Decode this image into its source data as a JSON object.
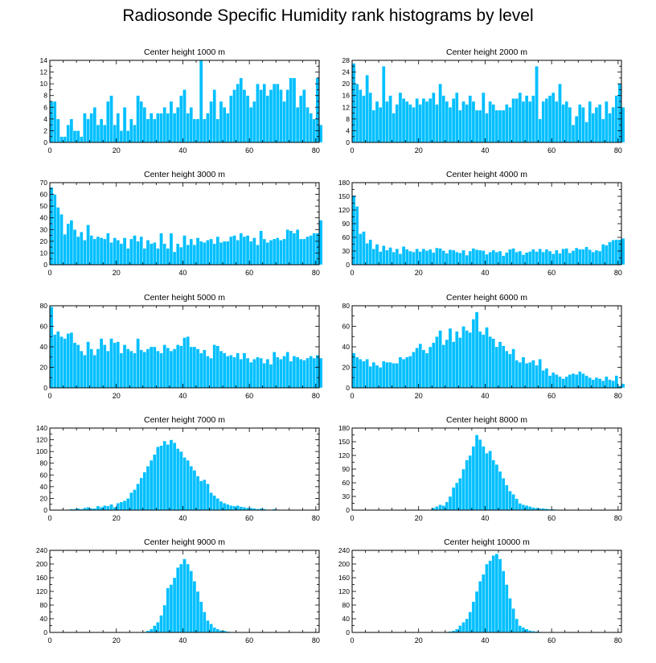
{
  "title": "Radiosonde Specific Humidity rank histograms by level",
  "colors": {
    "bar": "#00BFFF",
    "bar_edge": "#ffffff",
    "axis": "#000000"
  },
  "chart_data": [
    {
      "type": "bar",
      "title": "Center height 1000 m",
      "xlim": [
        0,
        81
      ],
      "ylim": [
        0,
        14
      ],
      "xticks": [
        0,
        20,
        40,
        60,
        80
      ],
      "yticks": [
        0,
        2,
        4,
        6,
        8,
        10,
        12,
        14
      ],
      "values": [
        7,
        7,
        4,
        1,
        1,
        3,
        4,
        2,
        2,
        1,
        5,
        4,
        5,
        6,
        3,
        4,
        3,
        7,
        8,
        3,
        5,
        2,
        6,
        2,
        4,
        3,
        8,
        7,
        6,
        4,
        5,
        4,
        5,
        5,
        6,
        5,
        7,
        5,
        6,
        8,
        9,
        5,
        6,
        4,
        4,
        14,
        4,
        5,
        7,
        9,
        4,
        7,
        6,
        5,
        8,
        9,
        10,
        11,
        9,
        8,
        6,
        7,
        10,
        9,
        10,
        8,
        9,
        10,
        10,
        9,
        7,
        9,
        11,
        11,
        6,
        8,
        9,
        6,
        5,
        4,
        11,
        3
      ]
    },
    {
      "type": "bar",
      "title": "Center height 2000 m",
      "xlim": [
        0,
        81
      ],
      "ylim": [
        0,
        28
      ],
      "xticks": [
        0,
        20,
        40,
        60,
        80
      ],
      "yticks": [
        0,
        4,
        8,
        12,
        16,
        20,
        24,
        28
      ],
      "values": [
        27,
        20,
        18,
        16,
        23,
        17,
        11,
        14,
        12,
        26,
        14,
        16,
        10,
        13,
        17,
        15,
        14,
        13,
        12,
        15,
        13,
        15,
        14,
        15,
        17,
        13,
        20,
        16,
        14,
        12,
        15,
        17,
        11,
        14,
        13,
        16,
        14,
        11,
        11,
        17,
        10,
        14,
        13,
        11,
        11,
        11,
        13,
        12,
        15,
        15,
        17,
        14,
        16,
        14,
        16,
        26,
        8,
        14,
        15,
        16,
        17,
        14,
        20,
        13,
        14,
        12,
        6,
        9,
        13,
        12,
        7,
        14,
        10,
        12,
        13,
        8,
        14,
        10,
        12,
        16,
        20,
        12
      ]
    },
    {
      "type": "bar",
      "title": "Center height 3000 m",
      "xlim": [
        0,
        81
      ],
      "ylim": [
        0,
        70
      ],
      "xticks": [
        0,
        20,
        40,
        60,
        80
      ],
      "yticks": [
        0,
        10,
        20,
        30,
        40,
        50,
        60,
        70
      ],
      "values": [
        66,
        60,
        49,
        43,
        26,
        35,
        38,
        30,
        24,
        28,
        21,
        34,
        25,
        22,
        24,
        23,
        22,
        27,
        19,
        23,
        21,
        18,
        23,
        14,
        22,
        25,
        20,
        24,
        14,
        21,
        18,
        19,
        14,
        27,
        18,
        14,
        27,
        11,
        18,
        15,
        25,
        17,
        22,
        17,
        23,
        20,
        19,
        21,
        22,
        18,
        24,
        19,
        20,
        20,
        24,
        25,
        21,
        27,
        24,
        25,
        20,
        23,
        17,
        29,
        22,
        19,
        21,
        22,
        23,
        21,
        22,
        30,
        29,
        27,
        30,
        22,
        22,
        24,
        25,
        27,
        27,
        38
      ]
    },
    {
      "type": "bar",
      "title": "Center height 4000 m",
      "xlim": [
        0,
        81
      ],
      "ylim": [
        0,
        180
      ],
      "xticks": [
        0,
        20,
        40,
        60,
        80
      ],
      "yticks": [
        0,
        30,
        60,
        90,
        120,
        150,
        180
      ],
      "values": [
        152,
        128,
        68,
        73,
        47,
        55,
        35,
        45,
        29,
        42,
        32,
        38,
        28,
        35,
        24,
        40,
        34,
        30,
        28,
        35,
        29,
        35,
        31,
        34,
        27,
        37,
        36,
        31,
        25,
        33,
        32,
        28,
        26,
        32,
        21,
        30,
        36,
        33,
        32,
        31,
        23,
        28,
        32,
        28,
        30,
        20,
        27,
        34,
        36,
        28,
        30,
        22,
        27,
        29,
        34,
        29,
        35,
        28,
        34,
        30,
        24,
        32,
        25,
        35,
        36,
        26,
        31,
        37,
        34,
        34,
        39,
        33,
        28,
        32,
        30,
        45,
        43,
        50,
        54,
        55,
        55,
        58
      ]
    },
    {
      "type": "bar",
      "title": "Center height 5000 m",
      "xlim": [
        0,
        81
      ],
      "ylim": [
        0,
        80
      ],
      "xticks": [
        0,
        20,
        40,
        60,
        80
      ],
      "yticks": [
        0,
        20,
        40,
        60,
        80
      ],
      "values": [
        79,
        52,
        55,
        50,
        48,
        53,
        54,
        44,
        42,
        36,
        32,
        45,
        38,
        32,
        38,
        48,
        42,
        36,
        48,
        44,
        45,
        34,
        42,
        38,
        36,
        34,
        48,
        37,
        35,
        38,
        40,
        40,
        36,
        34,
        42,
        39,
        36,
        38,
        42,
        41,
        49,
        50,
        40,
        40,
        38,
        34,
        37,
        31,
        29,
        42,
        41,
        36,
        34,
        31,
        32,
        30,
        34,
        28,
        34,
        29,
        25,
        28,
        30,
        29,
        24,
        28,
        23,
        35,
        30,
        28,
        31,
        35,
        26,
        31,
        30,
        28,
        27,
        29,
        31,
        29,
        32,
        29
      ]
    },
    {
      "type": "bar",
      "title": "Center height 6000 m",
      "xlim": [
        0,
        81
      ],
      "ylim": [
        0,
        80
      ],
      "xticks": [
        0,
        20,
        40,
        60,
        80
      ],
      "yticks": [
        0,
        20,
        40,
        60,
        80
      ],
      "values": [
        34,
        30,
        28,
        26,
        28,
        21,
        25,
        22,
        20,
        26,
        25,
        25,
        24,
        24,
        30,
        28,
        30,
        31,
        35,
        39,
        43,
        37,
        34,
        40,
        44,
        50,
        56,
        42,
        47,
        58,
        45,
        55,
        49,
        60,
        56,
        54,
        67,
        74,
        55,
        52,
        59,
        50,
        48,
        40,
        45,
        41,
        36,
        33,
        38,
        27,
        25,
        30,
        24,
        25,
        27,
        22,
        28,
        17,
        19,
        12,
        15,
        13,
        11,
        9,
        11,
        13,
        14,
        13,
        16,
        14,
        12,
        10,
        8,
        10,
        9,
        7,
        11,
        8,
        7,
        12,
        2,
        4
      ]
    },
    {
      "type": "bar",
      "title": "Center height 7000 m",
      "xlim": [
        0,
        81
      ],
      "ylim": [
        0,
        140
      ],
      "xticks": [
        0,
        20,
        40,
        60,
        80
      ],
      "yticks": [
        0,
        20,
        40,
        60,
        80,
        100,
        120,
        140
      ],
      "values": [
        0,
        0,
        0,
        0,
        0,
        1,
        2,
        2,
        3,
        2,
        4,
        5,
        3,
        3,
        7,
        5,
        8,
        7,
        10,
        5,
        12,
        14,
        16,
        20,
        30,
        35,
        45,
        55,
        65,
        75,
        85,
        95,
        108,
        110,
        118,
        112,
        120,
        115,
        105,
        100,
        90,
        85,
        75,
        68,
        58,
        50,
        52,
        45,
        30,
        25,
        20,
        15,
        12,
        10,
        8,
        7,
        8,
        6,
        5,
        4,
        4,
        3,
        2,
        3,
        2,
        1,
        1,
        2,
        1,
        0,
        1,
        0,
        0,
        1,
        0,
        0,
        0,
        0,
        0,
        0,
        0,
        0
      ]
    },
    {
      "type": "bar",
      "title": "Center height 8000 m",
      "xlim": [
        0,
        81
      ],
      "ylim": [
        0,
        180
      ],
      "xticks": [
        0,
        20,
        40,
        60,
        80
      ],
      "yticks": [
        0,
        30,
        60,
        90,
        120,
        150,
        180
      ],
      "values": [
        0,
        0,
        0,
        0,
        0,
        0,
        0,
        0,
        0,
        0,
        0,
        0,
        0,
        0,
        0,
        0,
        0,
        0,
        0,
        0,
        0,
        0,
        0,
        0,
        5,
        8,
        12,
        10,
        18,
        30,
        50,
        60,
        70,
        90,
        110,
        120,
        140,
        165,
        155,
        140,
        125,
        130,
        110,
        100,
        85,
        70,
        55,
        42,
        35,
        25,
        15,
        12,
        10,
        8,
        6,
        5,
        4,
        4,
        3,
        2,
        2,
        1,
        1,
        0,
        1,
        0,
        0,
        0,
        0,
        0,
        0,
        0,
        0,
        0,
        0,
        0,
        0,
        0,
        0,
        0,
        0,
        0
      ]
    },
    {
      "type": "bar",
      "title": "Center height 9000 m",
      "xlim": [
        0,
        81
      ],
      "ylim": [
        0,
        240
      ],
      "xticks": [
        0,
        20,
        40,
        60,
        80
      ],
      "yticks": [
        0,
        40,
        80,
        120,
        160,
        200,
        240
      ],
      "values": [
        0,
        0,
        0,
        0,
        0,
        0,
        0,
        0,
        0,
        0,
        0,
        0,
        0,
        0,
        0,
        0,
        0,
        0,
        0,
        0,
        0,
        0,
        0,
        0,
        0,
        0,
        0,
        0,
        2,
        5,
        10,
        20,
        30,
        50,
        80,
        130,
        140,
        160,
        190,
        200,
        215,
        200,
        180,
        150,
        120,
        90,
        60,
        35,
        25,
        15,
        10,
        6,
        5,
        3,
        2,
        1,
        1,
        0,
        1,
        0,
        0,
        0,
        0,
        0,
        0,
        0,
        0,
        0,
        0,
        0,
        0,
        0,
        0,
        0,
        0,
        0,
        0,
        0,
        0,
        0,
        0,
        0
      ]
    },
    {
      "type": "bar",
      "title": "Center height 10000 m",
      "xlim": [
        0,
        81
      ],
      "ylim": [
        0,
        240
      ],
      "xticks": [
        0,
        20,
        40,
        60,
        80
      ],
      "yticks": [
        0,
        40,
        80,
        120,
        160,
        200,
        240
      ],
      "values": [
        0,
        0,
        0,
        0,
        0,
        0,
        0,
        0,
        0,
        0,
        0,
        0,
        0,
        0,
        0,
        0,
        0,
        0,
        0,
        0,
        0,
        0,
        0,
        0,
        0,
        0,
        0,
        0,
        2,
        3,
        5,
        10,
        20,
        30,
        40,
        60,
        90,
        120,
        150,
        170,
        200,
        210,
        225,
        230,
        215,
        180,
        140,
        100,
        70,
        40,
        20,
        15,
        10,
        6,
        4,
        3,
        2,
        1,
        1,
        1,
        2,
        1,
        0,
        0,
        0,
        0,
        0,
        0,
        0,
        0,
        0,
        0,
        0,
        0,
        0,
        0,
        0,
        0,
        0,
        0,
        0,
        0
      ]
    }
  ]
}
